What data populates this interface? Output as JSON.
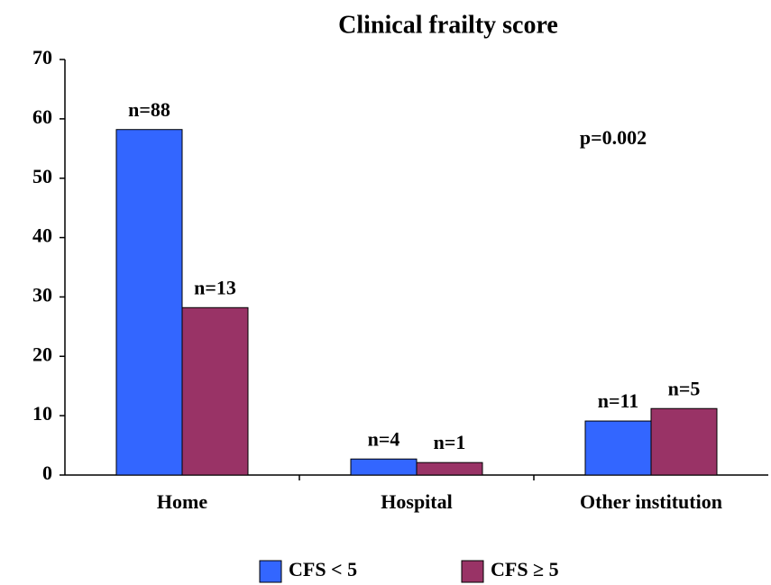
{
  "chart_data": {
    "type": "bar",
    "title": "Clinical frailty score",
    "categories": [
      "Home",
      "Hospital",
      "Other institution"
    ],
    "series": [
      {
        "name": "CFS < 5",
        "color": "#3366ff",
        "values": [
          58.2,
          2.7,
          9.1
        ],
        "n_labels": [
          "n=88",
          "n=4",
          "n=11"
        ]
      },
      {
        "name": "CFS ≥ 5",
        "color": "#993366",
        "values": [
          28.2,
          2.1,
          11.2
        ],
        "n_labels": [
          "n=13",
          "n=1",
          "n=5"
        ]
      }
    ],
    "annotation": "p=0.002",
    "ylim": [
      0,
      70
    ],
    "yticks": [
      0,
      10,
      20,
      30,
      40,
      50,
      60,
      70
    ],
    "grid": false,
    "legend": "bottom"
  }
}
